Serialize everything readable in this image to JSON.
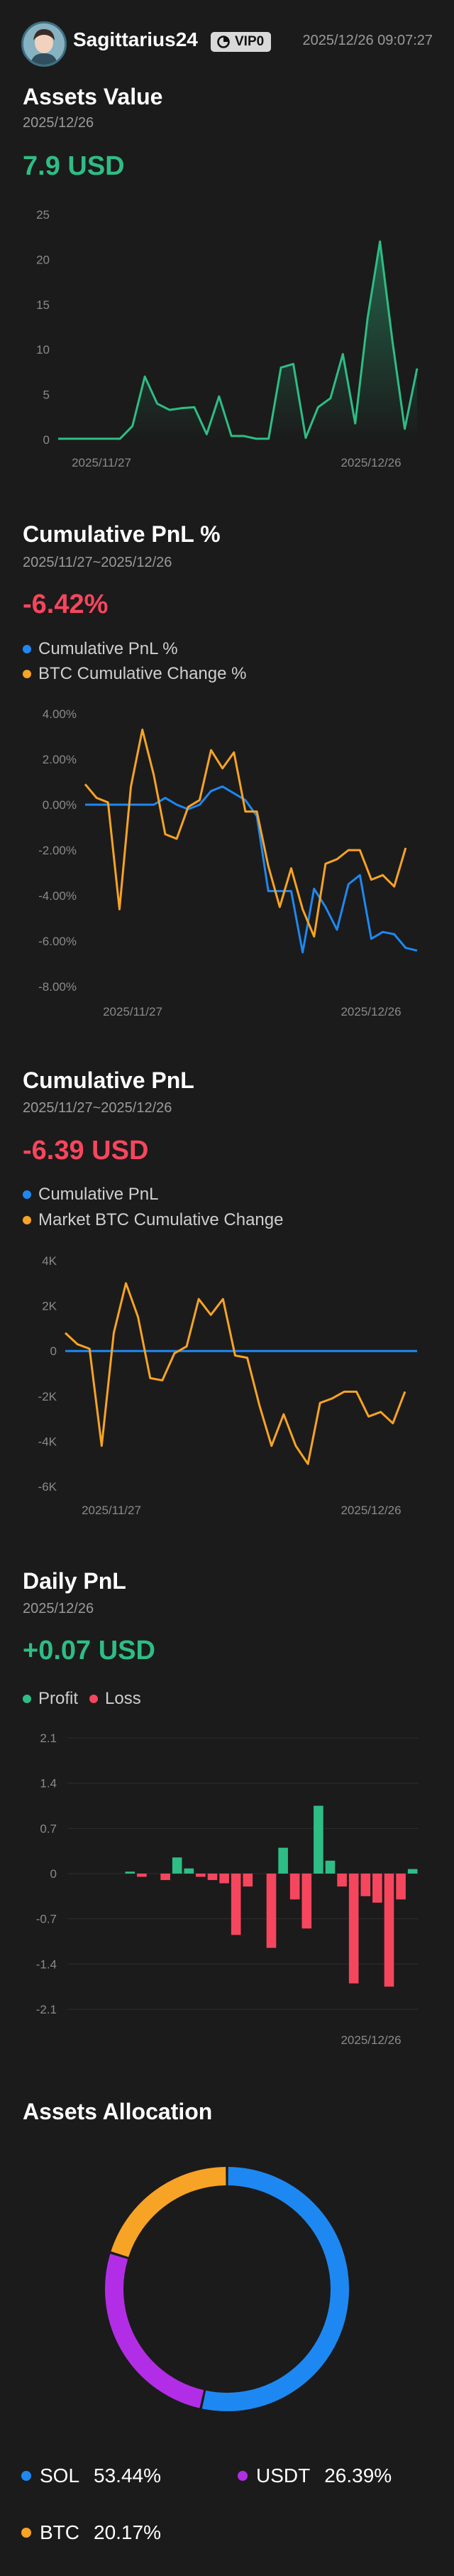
{
  "header": {
    "username": "Sagittarius24",
    "vip": "VIP0",
    "timestamp": "2025/12/26 09:07:27"
  },
  "assets_value": {
    "title": "Assets Value",
    "date": "2025/12/26",
    "value": "7.9 USD"
  },
  "cum_pnl_pct": {
    "title": "Cumulative PnL %",
    "range": "2025/11/27~2025/12/26",
    "value": "-6.42%",
    "legend": [
      "Cumulative PnL %",
      "BTC Cumulative Change %"
    ]
  },
  "cum_pnl": {
    "title": "Cumulative PnL",
    "range": "2025/11/27~2025/12/26",
    "value": "-6.39 USD",
    "legend": [
      "Cumulative PnL",
      "Market BTC Cumulative Change"
    ]
  },
  "daily_pnl": {
    "title": "Daily PnL",
    "date": "2025/12/26",
    "value": "+0.07 USD",
    "legend": [
      "Profit",
      "Loss"
    ]
  },
  "allocation": {
    "title": "Assets Allocation",
    "items": [
      {
        "name": "SOL",
        "pct": "53.44%"
      },
      {
        "name": "USDT",
        "pct": "26.39%"
      },
      {
        "name": "BTC",
        "pct": "20.17%"
      }
    ]
  },
  "colors": {
    "green": "#2ebd85",
    "red": "#f6465d",
    "blue": "#1e88f2",
    "orange": "#f7a325",
    "purple": "#b22ee6"
  },
  "chart_data": [
    {
      "type": "area",
      "title": "Assets Value",
      "x_ticks": [
        "2025/11/27",
        "2025/12/26"
      ],
      "y_ticks": [
        "25",
        "20",
        "15",
        "10",
        "5",
        "0"
      ],
      "ylim": [
        0,
        25
      ],
      "values": [
        0.1,
        0.1,
        0.1,
        0.1,
        0.1,
        0.1,
        1.5,
        7,
        4,
        3.3,
        3.5,
        3.6,
        0.6,
        4.8,
        0.4,
        0.4,
        0.1,
        0.1,
        8,
        8.4,
        0.2,
        3.6,
        4.6,
        9.5,
        1.8,
        13.5,
        22,
        11,
        1.2,
        7.9
      ]
    },
    {
      "type": "line",
      "title": "Cumulative PnL %",
      "x_ticks": [
        "2025/11/27",
        "2025/12/26"
      ],
      "y_ticks": [
        "4.00%",
        "2.00%",
        "0.00%",
        "-2.00%",
        "-4.00%",
        "-6.00%",
        "-8.00%"
      ],
      "ylim": [
        -8,
        4
      ],
      "series": [
        {
          "name": "Cumulative PnL %",
          "values": [
            0.0,
            0.0,
            0.0,
            0.0,
            0.0,
            0.0,
            0.0,
            0.3,
            0.0,
            -0.2,
            0.0,
            0.6,
            0.8,
            0.5,
            0.2,
            -0.5,
            -3.8,
            -3.8,
            -3.8,
            -6.5,
            -3.7,
            -4.5,
            -5.5,
            -3.5,
            -3.1,
            -5.9,
            -5.6,
            -5.7,
            -6.3,
            -6.42
          ]
        },
        {
          "name": "BTC Cumulative Change %",
          "values": [
            0.9,
            0.3,
            0.1,
            -4.6,
            0.8,
            3.3,
            1.3,
            -1.3,
            -1.5,
            -0.1,
            0.2,
            2.4,
            1.6,
            2.3,
            -0.3,
            -0.3,
            -2.7,
            -4.5,
            -2.8,
            -4.6,
            -5.8,
            -2.6,
            -2.4,
            -2.0,
            -2.0,
            -3.3,
            -3.1,
            -3.6,
            -1.9
          ]
        }
      ]
    },
    {
      "type": "line",
      "title": "Cumulative PnL",
      "x_ticks": [
        "2025/11/27",
        "2025/12/26"
      ],
      "y_ticks": [
        "4K",
        "2K",
        "0",
        "-2K",
        "-4K",
        "-6K"
      ],
      "ylim": [
        -6000,
        4000
      ],
      "series": [
        {
          "name": "Cumulative PnL",
          "values": [
            0,
            0,
            0,
            0,
            0,
            0,
            0,
            0,
            0,
            0,
            0,
            0,
            0,
            0,
            0,
            0,
            0,
            0,
            0,
            0,
            0,
            0,
            0,
            0,
            0,
            0,
            0,
            0,
            0,
            0
          ]
        },
        {
          "name": "Market BTC Cumulative Change",
          "values": [
            800,
            300,
            100,
            -4200,
            800,
            3000,
            1500,
            -1200,
            -1300,
            -100,
            200,
            2300,
            1600,
            2300,
            -200,
            -300,
            -2400,
            -4200,
            -2800,
            -4200,
            -5000,
            -2300,
            -2100,
            -1800,
            -1800,
            -2900,
            -2700,
            -3200,
            -1800
          ]
        }
      ]
    },
    {
      "type": "bar",
      "title": "Daily PnL",
      "x_ticks": [
        "2025/12/26"
      ],
      "y_ticks": [
        "2.1",
        "1.4",
        "0.7",
        "0",
        "-0.7",
        "-1.4",
        "-2.1"
      ],
      "ylim": [
        -2.1,
        2.1
      ],
      "values": [
        0,
        0,
        0,
        0,
        0,
        0.03,
        -0.05,
        0,
        -0.1,
        0.25,
        0.08,
        -0.05,
        -0.1,
        -0.15,
        -0.95,
        -0.2,
        0,
        -1.15,
        0.4,
        -0.4,
        -0.85,
        1.05,
        0.2,
        -0.2,
        -1.7,
        -0.35,
        -0.45,
        -1.75,
        -0.4,
        0.07
      ]
    },
    {
      "type": "pie",
      "title": "Assets Allocation",
      "categories": [
        "SOL",
        "USDT",
        "BTC"
      ],
      "values": [
        53.44,
        26.39,
        20.17
      ]
    }
  ]
}
